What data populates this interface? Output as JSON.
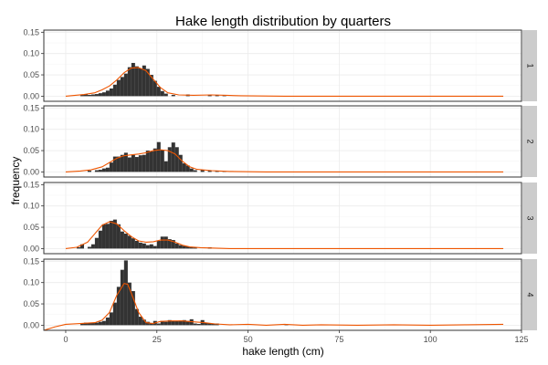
{
  "chart_data": {
    "type": "bar",
    "title": "Hake length distribution by quarters",
    "xlabel": "hake length (cm)",
    "ylabel": "frequency",
    "xlim": [
      -6,
      125
    ],
    "ylim": [
      -0.012,
      0.155
    ],
    "x_ticks": [
      0,
      25,
      50,
      75,
      100,
      125
    ],
    "x_tick_labels": [
      "0",
      "25",
      "50",
      "75",
      "100",
      "125"
    ],
    "y_ticks": [
      0,
      0.05,
      0.1,
      0.15
    ],
    "y_tick_labels": [
      "0.00",
      "0.05",
      "0.10",
      "0.15"
    ],
    "bin_width": 1,
    "grid": true,
    "colors": {
      "bars": "#333333",
      "density": "#ee5500",
      "panel_border": "#333333",
      "strip_fill": "#cccccc",
      "grid": "#ebebeb"
    },
    "panels": [
      {
        "strip": "1",
        "bars": [
          [
            4,
            0.003
          ],
          [
            5,
            0.004
          ],
          [
            6,
            0.003
          ],
          [
            7,
            0.004
          ],
          [
            8,
            0.005
          ],
          [
            9,
            0.007
          ],
          [
            10,
            0.009
          ],
          [
            11,
            0.013
          ],
          [
            12,
            0.018
          ],
          [
            13,
            0.027
          ],
          [
            14,
            0.038
          ],
          [
            15,
            0.045
          ],
          [
            16,
            0.053
          ],
          [
            17,
            0.068
          ],
          [
            18,
            0.078
          ],
          [
            19,
            0.07
          ],
          [
            20,
            0.065
          ],
          [
            21,
            0.072
          ],
          [
            22,
            0.064
          ],
          [
            23,
            0.05
          ],
          [
            24,
            0.036
          ],
          [
            25,
            0.022
          ],
          [
            26,
            0.012
          ],
          [
            27,
            0.006
          ],
          [
            29,
            0.003
          ],
          [
            33,
            0.004
          ],
          [
            39,
            0.002
          ],
          [
            41,
            0.003
          ],
          [
            43,
            0.002
          ]
        ],
        "density": [
          [
            0,
            0.0
          ],
          [
            5,
            0.004
          ],
          [
            8,
            0.008
          ],
          [
            10,
            0.015
          ],
          [
            12,
            0.024
          ],
          [
            14,
            0.038
          ],
          [
            16,
            0.055
          ],
          [
            18,
            0.066
          ],
          [
            20,
            0.067
          ],
          [
            22,
            0.06
          ],
          [
            24,
            0.04
          ],
          [
            26,
            0.02
          ],
          [
            28,
            0.008
          ],
          [
            31,
            0.003
          ],
          [
            35,
            0.002
          ],
          [
            40,
            0.003
          ],
          [
            44,
            0.002
          ],
          [
            48,
            0.001
          ],
          [
            60,
            0.0
          ],
          [
            120,
            0.0
          ]
        ]
      },
      {
        "strip": "2",
        "bars": [
          [
            6,
            0.003
          ],
          [
            8,
            0.004
          ],
          [
            9,
            0.005
          ],
          [
            10,
            0.008
          ],
          [
            11,
            0.01
          ],
          [
            12,
            0.022
          ],
          [
            13,
            0.036
          ],
          [
            14,
            0.036
          ],
          [
            15,
            0.04
          ],
          [
            16,
            0.045
          ],
          [
            17,
            0.034
          ],
          [
            18,
            0.04
          ],
          [
            19,
            0.035
          ],
          [
            20,
            0.039
          ],
          [
            21,
            0.04
          ],
          [
            22,
            0.05
          ],
          [
            23,
            0.048
          ],
          [
            24,
            0.055
          ],
          [
            25,
            0.07
          ],
          [
            26,
            0.052
          ],
          [
            27,
            0.025
          ],
          [
            28,
            0.058
          ],
          [
            29,
            0.069
          ],
          [
            30,
            0.058
          ],
          [
            31,
            0.04
          ],
          [
            32,
            0.02
          ],
          [
            33,
            0.015
          ],
          [
            34,
            0.008
          ],
          [
            35,
            0.004
          ],
          [
            37,
            0.004
          ],
          [
            39,
            0.003
          ],
          [
            41,
            0.003
          ],
          [
            43,
            0.002
          ],
          [
            45,
            0.002
          ]
        ],
        "density": [
          [
            0,
            0.0
          ],
          [
            4,
            0.002
          ],
          [
            7,
            0.005
          ],
          [
            10,
            0.012
          ],
          [
            12,
            0.022
          ],
          [
            14,
            0.032
          ],
          [
            16,
            0.038
          ],
          [
            18,
            0.04
          ],
          [
            20,
            0.042
          ],
          [
            22,
            0.045
          ],
          [
            24,
            0.05
          ],
          [
            26,
            0.052
          ],
          [
            28,
            0.05
          ],
          [
            30,
            0.042
          ],
          [
            32,
            0.025
          ],
          [
            34,
            0.012
          ],
          [
            36,
            0.006
          ],
          [
            40,
            0.003
          ],
          [
            45,
            0.001
          ],
          [
            55,
            0.0
          ],
          [
            120,
            0.0
          ]
        ]
      },
      {
        "strip": "3",
        "bars": [
          [
            3,
            0.003
          ],
          [
            4,
            0.01
          ],
          [
            6,
            0.004
          ],
          [
            7,
            0.01
          ],
          [
            8,
            0.025
          ],
          [
            9,
            0.042
          ],
          [
            10,
            0.057
          ],
          [
            11,
            0.058
          ],
          [
            12,
            0.065
          ],
          [
            13,
            0.068
          ],
          [
            14,
            0.057
          ],
          [
            15,
            0.04
          ],
          [
            16,
            0.035
          ],
          [
            17,
            0.03
          ],
          [
            18,
            0.024
          ],
          [
            19,
            0.018
          ],
          [
            20,
            0.014
          ],
          [
            21,
            0.012
          ],
          [
            22,
            0.008
          ],
          [
            23,
            0.01
          ],
          [
            24,
            0.006
          ],
          [
            25,
            0.018
          ],
          [
            26,
            0.028
          ],
          [
            27,
            0.028
          ],
          [
            28,
            0.022
          ],
          [
            29,
            0.02
          ],
          [
            30,
            0.012
          ],
          [
            31,
            0.008
          ],
          [
            32,
            0.006
          ],
          [
            33,
            0.005
          ],
          [
            34,
            0.003
          ],
          [
            35,
            0.002
          ],
          [
            39,
            0.003
          ]
        ],
        "density": [
          [
            0,
            0.0
          ],
          [
            3,
            0.003
          ],
          [
            6,
            0.015
          ],
          [
            8,
            0.035
          ],
          [
            10,
            0.055
          ],
          [
            12,
            0.063
          ],
          [
            14,
            0.058
          ],
          [
            16,
            0.042
          ],
          [
            18,
            0.028
          ],
          [
            20,
            0.018
          ],
          [
            22,
            0.015
          ],
          [
            24,
            0.016
          ],
          [
            26,
            0.02
          ],
          [
            28,
            0.02
          ],
          [
            30,
            0.015
          ],
          [
            32,
            0.008
          ],
          [
            34,
            0.004
          ],
          [
            37,
            0.002
          ],
          [
            45,
            0.0
          ],
          [
            120,
            0.0
          ]
        ]
      },
      {
        "strip": "4",
        "bars": [
          [
            4,
            0.004
          ],
          [
            5,
            0.006
          ],
          [
            6,
            0.006
          ],
          [
            7,
            0.005
          ],
          [
            8,
            0.006
          ],
          [
            9,
            0.008
          ],
          [
            10,
            0.01
          ],
          [
            11,
            0.018
          ],
          [
            12,
            0.03
          ],
          [
            13,
            0.053
          ],
          [
            14,
            0.09
          ],
          [
            15,
            0.13
          ],
          [
            16,
            0.152
          ],
          [
            17,
            0.1
          ],
          [
            18,
            0.08
          ],
          [
            19,
            0.038
          ],
          [
            20,
            0.02
          ],
          [
            21,
            0.013
          ],
          [
            22,
            0.008
          ],
          [
            23,
            0.005
          ],
          [
            24,
            0.01
          ],
          [
            25,
            0.004
          ],
          [
            26,
            0.01
          ],
          [
            27,
            0.008
          ],
          [
            28,
            0.012
          ],
          [
            29,
            0.01
          ],
          [
            30,
            0.01
          ],
          [
            31,
            0.011
          ],
          [
            32,
            0.012
          ],
          [
            33,
            0.01
          ],
          [
            34,
            0.014
          ],
          [
            35,
            0.004
          ],
          [
            36,
            0.003
          ],
          [
            37,
            0.012
          ],
          [
            38,
            0.006
          ],
          [
            39,
            0.005
          ],
          [
            40,
            0.003
          ],
          [
            41,
            0.004
          ],
          [
            60,
            0.002
          ]
        ],
        "density": [
          [
            -6,
            -0.012
          ],
          [
            -3,
            -0.004
          ],
          [
            0,
            0.002
          ],
          [
            4,
            0.004
          ],
          [
            8,
            0.006
          ],
          [
            10,
            0.012
          ],
          [
            12,
            0.03
          ],
          [
            14,
            0.07
          ],
          [
            16,
            0.098
          ],
          [
            17,
            0.096
          ],
          [
            18,
            0.075
          ],
          [
            20,
            0.03
          ],
          [
            22,
            0.006
          ],
          [
            24,
            0.004
          ],
          [
            26,
            0.009
          ],
          [
            29,
            0.01
          ],
          [
            32,
            0.01
          ],
          [
            35,
            0.008
          ],
          [
            38,
            0.006
          ],
          [
            41,
            0.003
          ],
          [
            45,
            0.001
          ],
          [
            50,
            0.002
          ],
          [
            55,
            0.0
          ],
          [
            60,
            0.002
          ],
          [
            65,
            0.0
          ],
          [
            70,
            0.001
          ],
          [
            80,
            0.0
          ],
          [
            90,
            0.001
          ],
          [
            100,
            0.0
          ],
          [
            110,
            0.001
          ],
          [
            120,
            0.002
          ]
        ]
      }
    ]
  }
}
